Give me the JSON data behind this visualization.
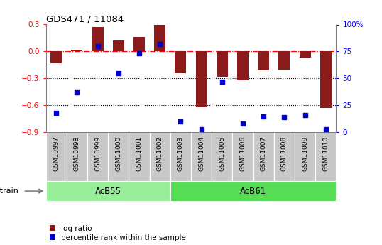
{
  "title": "GDS471 / 11084",
  "samples": [
    "GSM10997",
    "GSM10998",
    "GSM10999",
    "GSM11000",
    "GSM11001",
    "GSM11002",
    "GSM11003",
    "GSM11004",
    "GSM11005",
    "GSM11006",
    "GSM11007",
    "GSM11008",
    "GSM11009",
    "GSM11010"
  ],
  "log_ratio": [
    -0.13,
    0.02,
    0.27,
    0.12,
    0.16,
    0.3,
    -0.24,
    -0.62,
    -0.28,
    -0.32,
    -0.21,
    -0.2,
    -0.07,
    -0.63
  ],
  "percentile_rank": [
    18,
    37,
    80,
    55,
    73,
    82,
    10,
    3,
    47,
    8,
    15,
    14,
    16,
    3
  ],
  "bar_color": "#8B1A1A",
  "scatter_color": "#0000CD",
  "ylim_left": [
    -0.9,
    0.3
  ],
  "ylim_right": [
    0,
    100
  ],
  "hline_y": 0.0,
  "dotted_lines": [
    -0.3,
    -0.6
  ],
  "group1_label": "AcB55",
  "group1_indices": [
    0,
    1,
    2,
    3,
    4,
    5
  ],
  "group2_label": "AcB61",
  "group2_indices": [
    6,
    7,
    8,
    9,
    10,
    11,
    12,
    13
  ],
  "group1_color": "#99EE99",
  "group2_color": "#55DD55",
  "strain_label": "strain",
  "legend_log": "log ratio",
  "legend_pct": "percentile rank within the sample",
  "yticks_left": [
    0.3,
    0.0,
    -0.3,
    -0.6,
    -0.9
  ],
  "yticks_right": [
    0,
    25,
    50,
    75,
    100
  ],
  "ytick_labels_right": [
    "0",
    "25",
    "50",
    "75",
    "100%"
  ]
}
